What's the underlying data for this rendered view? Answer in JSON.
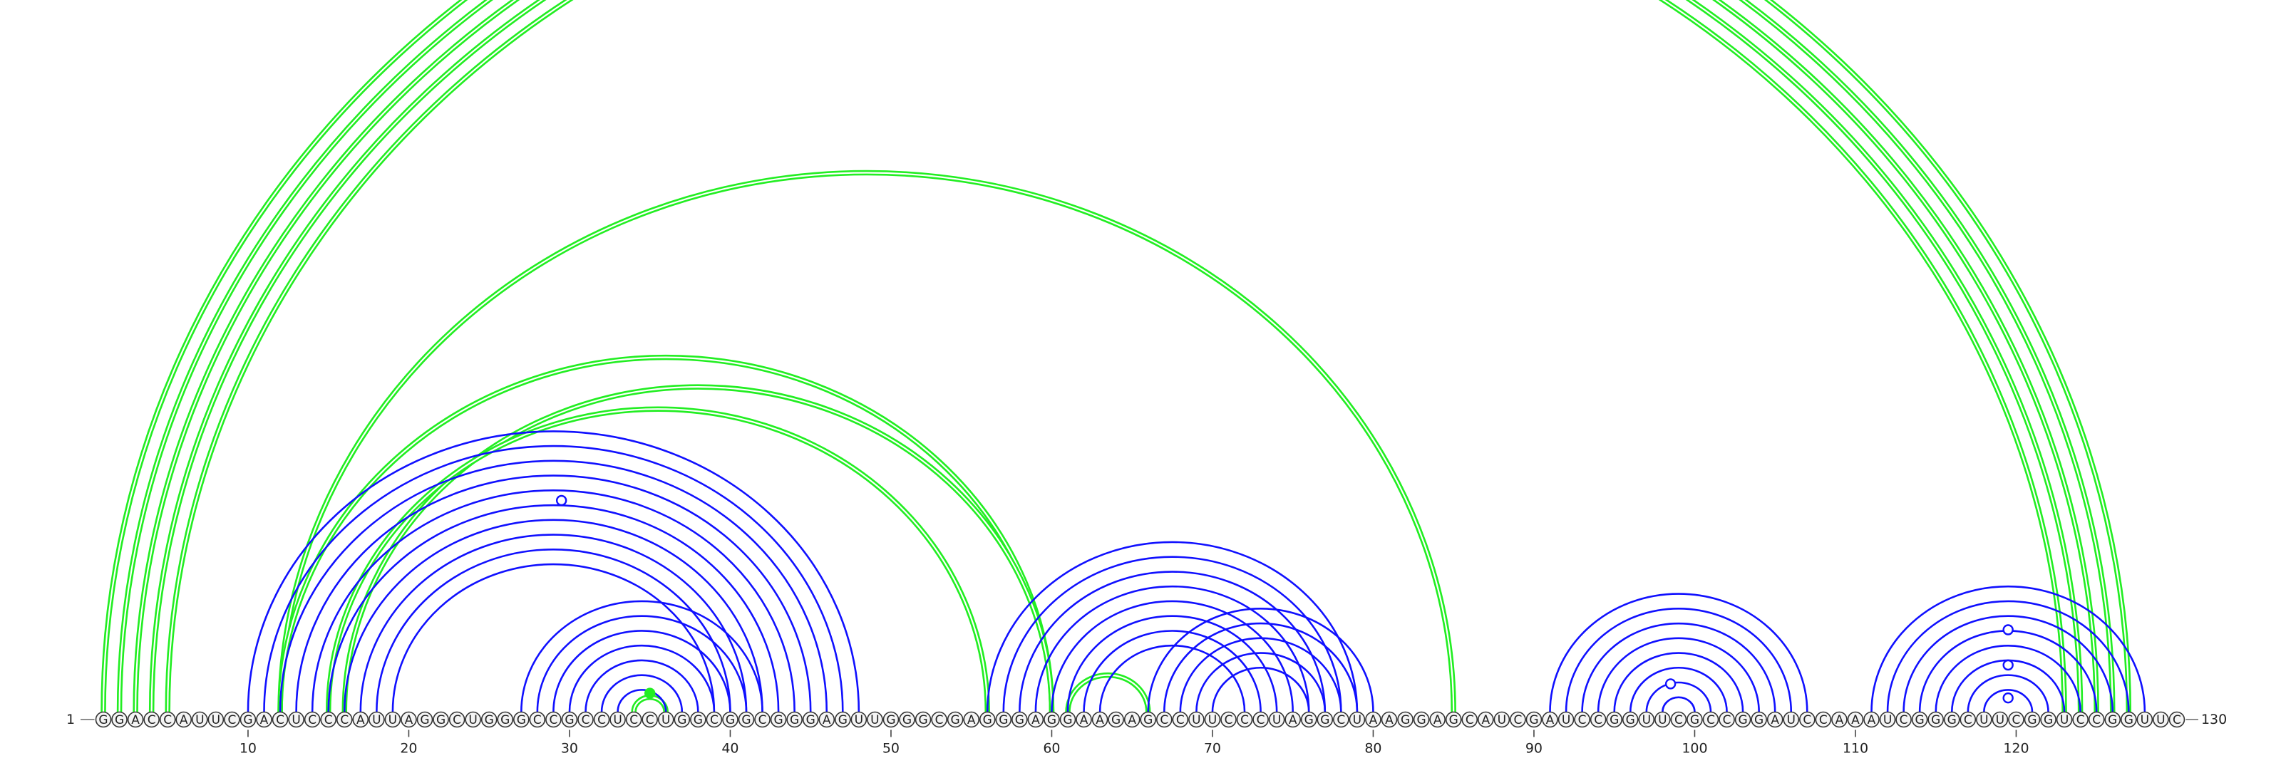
{
  "colors": {
    "blue_arc": "#1010ff",
    "green_arc": "#22ee22",
    "marker_blue": "#1010ff",
    "marker_green": "#22ee22"
  },
  "sequence": "GGACCAUUCGACUCCCAUUAGGCUGGGCCGCCUCCUGGCGGCGGGAGUUGGGCGAGGGAGGAAGAGCCUUCCCUAGGCUAAGGAGCAUCGAUCCGGUUCGCCGGAUCCAAAUCGGGCUUCGGUCCGGUUC",
  "start_label": "1",
  "end_label": "130",
  "ticks": [
    10,
    20,
    30,
    40,
    50,
    60,
    70,
    80,
    90,
    100,
    110,
    120
  ],
  "blue_pairs": [
    [
      10,
      48
    ],
    [
      11,
      47
    ],
    [
      12,
      46
    ],
    [
      13,
      45
    ],
    [
      14,
      44
    ],
    [
      15,
      43
    ],
    [
      16,
      42
    ],
    [
      17,
      41
    ],
    [
      18,
      40
    ],
    [
      19,
      39
    ],
    [
      27,
      42
    ],
    [
      28,
      41
    ],
    [
      29,
      40
    ],
    [
      30,
      39
    ],
    [
      31,
      38
    ],
    [
      32,
      37
    ],
    [
      33,
      36
    ],
    [
      56,
      79
    ],
    [
      57,
      78
    ],
    [
      58,
      77
    ],
    [
      59,
      76
    ],
    [
      60,
      75
    ],
    [
      61,
      74
    ],
    [
      62,
      73
    ],
    [
      63,
      72
    ],
    [
      66,
      80
    ],
    [
      67,
      79
    ],
    [
      68,
      78
    ],
    [
      69,
      77
    ],
    [
      70,
      76
    ],
    [
      91,
      107
    ],
    [
      92,
      106
    ],
    [
      93,
      105
    ],
    [
      94,
      104
    ],
    [
      95,
      103
    ],
    [
      96,
      102
    ],
    [
      97,
      101
    ],
    [
      98,
      100
    ],
    [
      111,
      128
    ],
    [
      112,
      127
    ],
    [
      113,
      126
    ],
    [
      114,
      125
    ],
    [
      115,
      124
    ],
    [
      116,
      123
    ],
    [
      117,
      122
    ],
    [
      118,
      121
    ]
  ],
  "green_pairs": [
    [
      1,
      127
    ],
    [
      2,
      126
    ],
    [
      3,
      125
    ],
    [
      4,
      124
    ],
    [
      5,
      123
    ],
    [
      12,
      85
    ],
    [
      12,
      60
    ],
    [
      16,
      60
    ],
    [
      15,
      56
    ],
    [
      34,
      36
    ],
    [
      61,
      66
    ]
  ],
  "markers": [
    {
      "pos": 29.5,
      "level": 0.9,
      "color": "blue",
      "filled": false
    },
    {
      "pos": 35,
      "level": 0.08,
      "color": "green",
      "filled": true
    },
    {
      "pos": 98.5,
      "level": 0.12,
      "color": "blue",
      "filled": false
    },
    {
      "pos": 119.5,
      "level": 0.35,
      "color": "blue",
      "filled": false
    },
    {
      "pos": 119.5,
      "level": 0.2,
      "color": "blue",
      "filled": false
    },
    {
      "pos": 119.5,
      "level": 0.06,
      "color": "blue",
      "filled": false
    }
  ]
}
